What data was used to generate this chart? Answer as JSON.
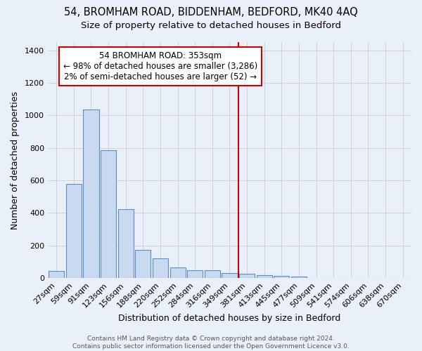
{
  "title1": "54, BROMHAM ROAD, BIDDENHAM, BEDFORD, MK40 4AQ",
  "title2": "Size of property relative to detached houses in Bedford",
  "xlabel": "Distribution of detached houses by size in Bedford",
  "ylabel": "Number of detached properties",
  "categories": [
    "27sqm",
    "59sqm",
    "91sqm",
    "123sqm",
    "156sqm",
    "188sqm",
    "220sqm",
    "252sqm",
    "284sqm",
    "316sqm",
    "349sqm",
    "381sqm",
    "413sqm",
    "445sqm",
    "477sqm",
    "509sqm",
    "541sqm",
    "574sqm",
    "606sqm",
    "638sqm",
    "670sqm"
  ],
  "values": [
    45,
    580,
    1035,
    785,
    425,
    175,
    120,
    65,
    50,
    50,
    30,
    25,
    20,
    12,
    10,
    0,
    0,
    0,
    0,
    0,
    0
  ],
  "bar_color": "#c9d9f0",
  "bar_edge_color": "#5b8ec4",
  "background_color": "#eaf0fa",
  "grid_color": "#c8cdd8",
  "vline_x": 10.5,
  "vline_color": "#cc0000",
  "annotation_line1": "54 BROMHAM ROAD: 353sqm",
  "annotation_line2": "← 98% of detached houses are smaller (3,286)",
  "annotation_line3": "2% of semi-detached houses are larger (52) →",
  "annotation_box_color": "#ffffff",
  "annotation_box_edge": "#cc0000",
  "ylim": [
    0,
    1450
  ],
  "yticks": [
    0,
    200,
    400,
    600,
    800,
    1000,
    1200,
    1400
  ],
  "title1_fontsize": 10.5,
  "title2_fontsize": 9.5,
  "xlabel_fontsize": 9,
  "ylabel_fontsize": 9,
  "tick_fontsize": 8,
  "annot_fontsize": 8.5,
  "footer": "Contains HM Land Registry data © Crown copyright and database right 2024.\nContains public sector information licensed under the Open Government Licence v3.0."
}
